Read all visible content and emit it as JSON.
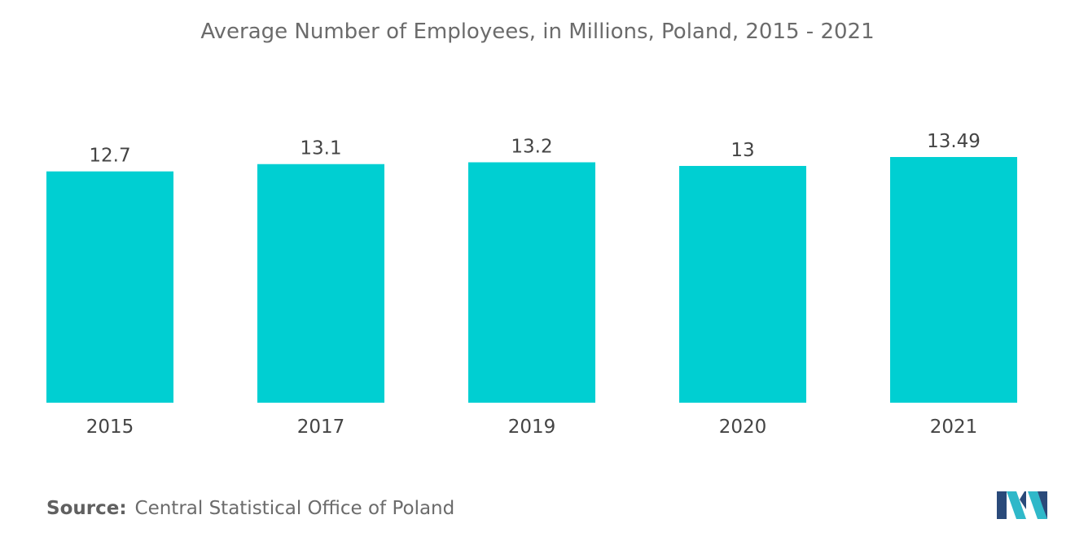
{
  "chart_data": {
    "type": "bar",
    "title": "Average Number of Employees, in Millions, Poland, 2015 - 2021",
    "categories": [
      "2015",
      "2017",
      "2019",
      "2020",
      "2021"
    ],
    "values": [
      12.7,
      13.1,
      13.2,
      13,
      13.49
    ],
    "value_labels": [
      "12.7",
      "13.1",
      "13.2",
      "13",
      "13.49"
    ],
    "xlabel": "",
    "ylabel": "",
    "ylim": [
      0,
      13.49
    ],
    "grid": false,
    "legend": "none",
    "bar_color": "#00cfd2"
  },
  "source": {
    "label": "Source:",
    "text": "Central Statistical Office of Poland"
  },
  "logo": {
    "icon": "mordor-intelligence-logo",
    "colors": [
      "#2a4a7a",
      "#2fb8c9"
    ]
  }
}
